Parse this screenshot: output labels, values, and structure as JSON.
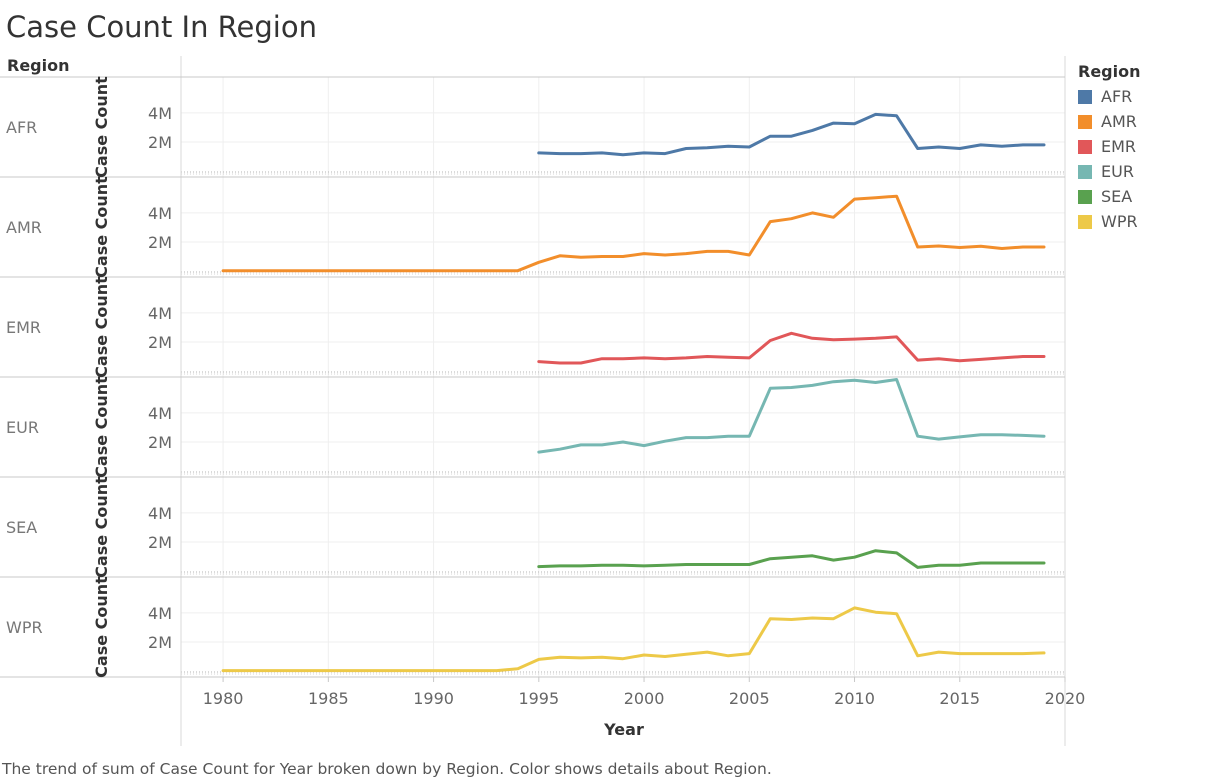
{
  "page": {
    "title": "Case Count In Region",
    "row_header": "Region",
    "caption": "The trend of sum of Case Count for Year broken down by Region.  Color shows details about Region."
  },
  "legend": {
    "title": "Region",
    "items": [
      {
        "label": "AFR",
        "color": "#4e79a7"
      },
      {
        "label": "AMR",
        "color": "#f28e2b"
      },
      {
        "label": "EMR",
        "color": "#e15759"
      },
      {
        "label": "EUR",
        "color": "#76b7b2"
      },
      {
        "label": "SEA",
        "color": "#59a14f"
      },
      {
        "label": "WPR",
        "color": "#edc948"
      }
    ]
  },
  "chart_data": {
    "type": "line",
    "title": "Case Count In Region",
    "xlabel": "Year",
    "ylabel": "Case Count",
    "xlim": [
      1978,
      2020
    ],
    "ylim": [
      0,
      6200000
    ],
    "x_ticks": [
      1980,
      1985,
      1990,
      1995,
      2000,
      2005,
      2010,
      2015,
      2020
    ],
    "x_tick_labels": [
      "1980",
      "1985",
      "1990",
      "1995",
      "2000",
      "2005",
      "2010",
      "2015",
      "2020"
    ],
    "y_ticks": [
      2000000,
      4000000
    ],
    "y_tick_labels": [
      "2M",
      "4M"
    ],
    "grid": true,
    "legend_position": "top-right",
    "series": [
      {
        "name": "AFR",
        "color": "#4e79a7",
        "x": [
          1995,
          1996,
          1997,
          1998,
          1999,
          2000,
          2001,
          2002,
          2003,
          2004,
          2005,
          2006,
          2007,
          2008,
          2009,
          2010,
          2011,
          2012,
          2013,
          2014,
          2015,
          2016,
          2017,
          2018,
          2019
        ],
        "y": [
          1250000,
          1200000,
          1200000,
          1250000,
          1120000,
          1250000,
          1200000,
          1550000,
          1600000,
          1700000,
          1650000,
          2400000,
          2400000,
          2800000,
          3300000,
          3250000,
          3900000,
          3800000,
          1550000,
          1650000,
          1550000,
          1800000,
          1700000,
          1800000,
          1800000
        ]
      },
      {
        "name": "AMR",
        "color": "#f28e2b",
        "x": [
          1980,
          1981,
          1982,
          1983,
          1984,
          1985,
          1986,
          1987,
          1988,
          1989,
          1990,
          1991,
          1992,
          1993,
          1994,
          1995,
          1996,
          1997,
          1998,
          1999,
          2000,
          2001,
          2002,
          2003,
          2004,
          2005,
          2006,
          2007,
          2008,
          2009,
          2010,
          2011,
          2012,
          2013,
          2014,
          2015,
          2016,
          2017,
          2018,
          2019
        ],
        "y": [
          20000,
          20000,
          20000,
          20000,
          20000,
          20000,
          20000,
          20000,
          20000,
          20000,
          20000,
          20000,
          20000,
          20000,
          20000,
          600000,
          1050000,
          950000,
          1000000,
          1000000,
          1200000,
          1100000,
          1200000,
          1350000,
          1350000,
          1100000,
          3400000,
          3600000,
          4000000,
          3700000,
          4950000,
          5050000,
          5150000,
          1650000,
          1720000,
          1620000,
          1700000,
          1550000,
          1650000,
          1650000
        ]
      },
      {
        "name": "EMR",
        "color": "#e15759",
        "x": [
          1995,
          1996,
          1997,
          1998,
          1999,
          2000,
          2001,
          2002,
          2003,
          2004,
          2005,
          2006,
          2007,
          2008,
          2009,
          2010,
          2011,
          2012,
          2013,
          2014,
          2015,
          2016,
          2017,
          2018,
          2019
        ],
        "y": [
          650000,
          550000,
          550000,
          850000,
          850000,
          900000,
          850000,
          900000,
          1000000,
          950000,
          900000,
          2100000,
          2600000,
          2250000,
          2150000,
          2200000,
          2250000,
          2350000,
          750000,
          850000,
          700000,
          800000,
          900000,
          1000000,
          1000000
        ]
      },
      {
        "name": "EUR",
        "color": "#76b7b2",
        "x": [
          1995,
          1996,
          1997,
          1998,
          1999,
          2000,
          2001,
          2002,
          2003,
          2004,
          2005,
          2006,
          2007,
          2008,
          2009,
          2010,
          2011,
          2012,
          2013,
          2014,
          2015,
          2016,
          2017,
          2018,
          2019
        ],
        "y": [
          1300000,
          1500000,
          1800000,
          1800000,
          2000000,
          1750000,
          2050000,
          2300000,
          2300000,
          2400000,
          2400000,
          5700000,
          5750000,
          5900000,
          6150000,
          6250000,
          6100000,
          6300000,
          2400000,
          2200000,
          2350000,
          2500000,
          2500000,
          2450000,
          2400000
        ]
      },
      {
        "name": "SEA",
        "color": "#59a14f",
        "x": [
          1995,
          1996,
          1997,
          1998,
          1999,
          2000,
          2001,
          2002,
          2003,
          2004,
          2005,
          2006,
          2007,
          2008,
          2009,
          2010,
          2011,
          2012,
          2013,
          2014,
          2015,
          2016,
          2017,
          2018,
          2019
        ],
        "y": [
          300000,
          350000,
          350000,
          400000,
          400000,
          350000,
          400000,
          450000,
          450000,
          450000,
          450000,
          850000,
          950000,
          1050000,
          750000,
          950000,
          1400000,
          1250000,
          250000,
          400000,
          400000,
          550000,
          550000,
          550000,
          550000
        ]
      },
      {
        "name": "WPR",
        "color": "#edc948",
        "x": [
          1980,
          1981,
          1982,
          1983,
          1984,
          1985,
          1986,
          1987,
          1988,
          1989,
          1990,
          1991,
          1992,
          1993,
          1994,
          1995,
          1996,
          1997,
          1998,
          1999,
          2000,
          2001,
          2002,
          2003,
          2004,
          2005,
          2006,
          2007,
          2008,
          2009,
          2010,
          2011,
          2012,
          2013,
          2014,
          2015,
          2016,
          2017,
          2018,
          2019
        ],
        "y": [
          30000,
          30000,
          30000,
          30000,
          30000,
          30000,
          30000,
          30000,
          30000,
          30000,
          30000,
          30000,
          30000,
          30000,
          150000,
          800000,
          950000,
          900000,
          950000,
          850000,
          1100000,
          1000000,
          1150000,
          1300000,
          1050000,
          1200000,
          3600000,
          3550000,
          3650000,
          3600000,
          4350000,
          4050000,
          3950000,
          1050000,
          1300000,
          1200000,
          1200000,
          1200000,
          1200000,
          1250000
        ]
      }
    ]
  }
}
